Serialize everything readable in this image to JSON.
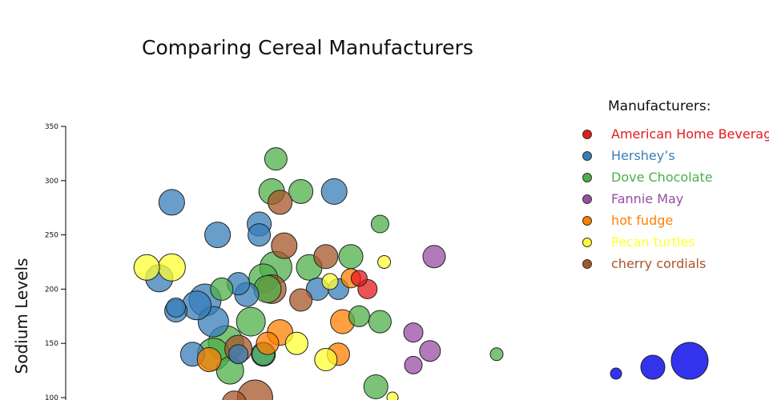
{
  "chart_data": {
    "type": "scatter",
    "title": "Comparing Cereal Manufacturers",
    "ylabel": "Sodium Levels",
    "xlabel": "",
    "ylim": [
      100,
      350
    ],
    "yticks": [
      100,
      150,
      200,
      250,
      300,
      350
    ],
    "grid": false,
    "legend": {
      "title": "Manufacturers:",
      "position": "right"
    },
    "size_legend_position": "bottom-right",
    "series": [
      {
        "name": "American Home Beverages",
        "color": "#e41a1c",
        "points": [
          {
            "x": 6.9,
            "y": 200,
            "s": 12
          },
          {
            "x": 6.7,
            "y": 210,
            "s": 10
          }
        ]
      },
      {
        "name": "Hershey’s",
        "color": "#377eb8",
        "points": [
          {
            "x": 2.2,
            "y": 280,
            "s": 16
          },
          {
            "x": 1.9,
            "y": 210,
            "s": 17
          },
          {
            "x": 2.3,
            "y": 180,
            "s": 14
          },
          {
            "x": 2.8,
            "y": 185,
            "s": 18
          },
          {
            "x": 3.0,
            "y": 190,
            "s": 20
          },
          {
            "x": 3.3,
            "y": 250,
            "s": 16
          },
          {
            "x": 3.2,
            "y": 170,
            "s": 19
          },
          {
            "x": 2.7,
            "y": 140,
            "s": 15
          },
          {
            "x": 3.8,
            "y": 205,
            "s": 14
          },
          {
            "x": 4.0,
            "y": 195,
            "s": 15
          },
          {
            "x": 4.3,
            "y": 260,
            "s": 15
          },
          {
            "x": 4.3,
            "y": 250,
            "s": 14
          },
          {
            "x": 4.4,
            "y": 140,
            "s": 15
          },
          {
            "x": 3.8,
            "y": 140,
            "s": 12
          },
          {
            "x": 6.1,
            "y": 290,
            "s": 16
          },
          {
            "x": 5.7,
            "y": 200,
            "s": 14
          },
          {
            "x": 6.2,
            "y": 200,
            "s": 13
          },
          {
            "x": 2.3,
            "y": 183,
            "s": 12
          }
        ]
      },
      {
        "name": "Dove Chocolate",
        "color": "#4daf4a",
        "points": [
          {
            "x": 4.7,
            "y": 320,
            "s": 14
          },
          {
            "x": 4.6,
            "y": 290,
            "s": 16
          },
          {
            "x": 5.3,
            "y": 290,
            "s": 15
          },
          {
            "x": 7.2,
            "y": 260,
            "s": 11
          },
          {
            "x": 6.5,
            "y": 230,
            "s": 15
          },
          {
            "x": 4.7,
            "y": 220,
            "s": 20
          },
          {
            "x": 4.4,
            "y": 210,
            "s": 18
          },
          {
            "x": 5.5,
            "y": 220,
            "s": 16
          },
          {
            "x": 3.4,
            "y": 200,
            "s": 14
          },
          {
            "x": 4.1,
            "y": 170,
            "s": 18
          },
          {
            "x": 3.5,
            "y": 150,
            "s": 22
          },
          {
            "x": 3.2,
            "y": 140,
            "s": 20
          },
          {
            "x": 3.6,
            "y": 125,
            "s": 17
          },
          {
            "x": 4.4,
            "y": 140,
            "s": 14
          },
          {
            "x": 6.7,
            "y": 175,
            "s": 13
          },
          {
            "x": 7.2,
            "y": 170,
            "s": 14
          },
          {
            "x": 7.1,
            "y": 110,
            "s": 15
          },
          {
            "x": 10.0,
            "y": 140,
            "s": 8
          },
          {
            "x": 4.5,
            "y": 200,
            "s": 17
          }
        ]
      },
      {
        "name": "Fannie May",
        "color": "#984ea3",
        "points": [
          {
            "x": 8.5,
            "y": 230,
            "s": 14
          },
          {
            "x": 8.0,
            "y": 160,
            "s": 12
          },
          {
            "x": 8.4,
            "y": 143,
            "s": 13
          },
          {
            "x": 8.0,
            "y": 130,
            "s": 11
          }
        ]
      },
      {
        "name": "hot fudge",
        "color": "#ff7f00",
        "points": [
          {
            "x": 4.8,
            "y": 160,
            "s": 16
          },
          {
            "x": 6.3,
            "y": 170,
            "s": 15
          },
          {
            "x": 6.2,
            "y": 140,
            "s": 14
          },
          {
            "x": 3.1,
            "y": 135,
            "s": 15
          },
          {
            "x": 6.5,
            "y": 210,
            "s": 12
          },
          {
            "x": 4.5,
            "y": 150,
            "s": 14
          }
        ]
      },
      {
        "name": "Pecan turtles",
        "color": "#ffff33",
        "points": [
          {
            "x": 1.6,
            "y": 220,
            "s": 16
          },
          {
            "x": 2.2,
            "y": 220,
            "s": 17
          },
          {
            "x": 5.2,
            "y": 150,
            "s": 14
          },
          {
            "x": 5.9,
            "y": 135,
            "s": 14
          },
          {
            "x": 7.3,
            "y": 225,
            "s": 8
          },
          {
            "x": 7.5,
            "y": 100,
            "s": 7
          },
          {
            "x": 6.0,
            "y": 207,
            "s": 10
          }
        ]
      },
      {
        "name": "cherry cordials",
        "color": "#a65628",
        "points": [
          {
            "x": 4.8,
            "y": 280,
            "s": 15
          },
          {
            "x": 4.9,
            "y": 240,
            "s": 16
          },
          {
            "x": 5.9,
            "y": 230,
            "s": 15
          },
          {
            "x": 5.3,
            "y": 190,
            "s": 14
          },
          {
            "x": 3.8,
            "y": 145,
            "s": 17
          },
          {
            "x": 4.2,
            "y": 100,
            "s": 22
          },
          {
            "x": 4.6,
            "y": 200,
            "s": 18
          },
          {
            "x": 3.7,
            "y": 95,
            "s": 15
          }
        ]
      }
    ],
    "size_legend": [
      {
        "s": 7
      },
      {
        "s": 15
      },
      {
        "s": 23
      }
    ]
  }
}
